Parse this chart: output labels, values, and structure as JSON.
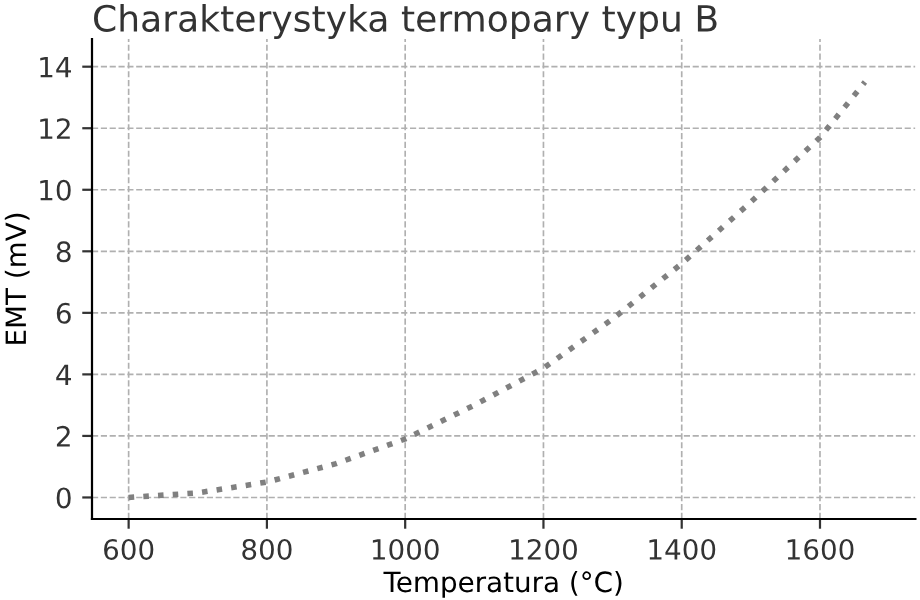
{
  "chart_data": {
    "type": "line",
    "title": "Charakterystyka termopary typu B",
    "xlabel": "Temperatura (°C)",
    "ylabel": "EMT (mV)",
    "x": [
      600,
      700,
      800,
      900,
      1000,
      1100,
      1200,
      1300,
      1400,
      1500,
      1600,
      1665
    ],
    "series": [
      {
        "color": "#808080",
        "values": [
          0,
          0.15,
          0.5,
          1.1,
          1.9,
          3.0,
          4.2,
          5.8,
          7.6,
          9.6,
          11.7,
          13.5
        ]
      }
    ],
    "xlim": [
      547,
      1738
    ],
    "ylim": [
      -0.7,
      14.9
    ],
    "xticks": [
      600,
      800,
      1000,
      1200,
      1400,
      1600
    ],
    "yticks": [
      0,
      2,
      4,
      6,
      8,
      10,
      12,
      14
    ],
    "grid": true,
    "line_style": "dotted",
    "marker": "none"
  }
}
